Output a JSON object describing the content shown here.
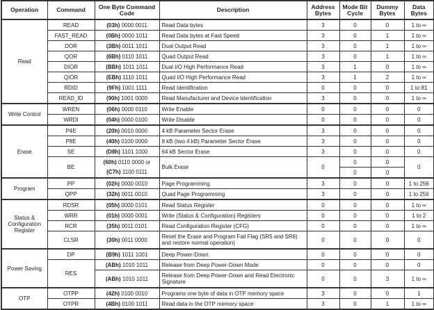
{
  "headers": [
    "Operation",
    "Command",
    "One Byte Command Code",
    "Description",
    "Address Bytes",
    "Mode Bit Cycle",
    "Dummy Bytes",
    "Data Bytes"
  ],
  "groups": [
    {
      "operation": "Read",
      "commands": [
        {
          "command": "READ",
          "entries": [
            {
              "codes": [
                {
                  "hex": "(03h)",
                  "bin": "0000 0011"
                }
              ],
              "description": "Read Data bytes",
              "address": "3",
              "mode": "0",
              "dummy": "0",
              "data": "1 to ∞"
            }
          ]
        },
        {
          "command": "FAST_READ",
          "entries": [
            {
              "codes": [
                {
                  "hex": "(0Bh)",
                  "bin": "0000 1011"
                }
              ],
              "description": "Read Data bytes at Fast Speed",
              "address": "3",
              "mode": "0",
              "dummy": "1",
              "data": "1 to ∞"
            }
          ]
        },
        {
          "command": "DOR",
          "entries": [
            {
              "codes": [
                {
                  "hex": "(3Bh)",
                  "bin": "0011 1011"
                }
              ],
              "description": "Dual Output Read",
              "address": "3",
              "mode": "0",
              "dummy": "1",
              "data": "1 to ∞"
            }
          ]
        },
        {
          "command": "QOR",
          "entries": [
            {
              "codes": [
                {
                  "hex": "(6Bh)",
                  "bin": "0110 1011"
                }
              ],
              "description": "Quad Output Read",
              "address": "3",
              "mode": "0",
              "dummy": "1",
              "data": "1 to ∞"
            }
          ]
        },
        {
          "command": "DIOR",
          "entries": [
            {
              "codes": [
                {
                  "hex": "(BBh)",
                  "bin": "1011 1011"
                }
              ],
              "description": "Dual I/O High Performance Read",
              "address": "3",
              "mode": "1",
              "dummy": "0",
              "data": "1 to ∞"
            }
          ]
        },
        {
          "command": "QIOR",
          "entries": [
            {
              "codes": [
                {
                  "hex": "(EBh)",
                  "bin": "1110 1011"
                }
              ],
              "description": "Quad I/O High Performance Read",
              "address": "3",
              "mode": "1",
              "dummy": "2",
              "data": "1 to ∞"
            }
          ]
        },
        {
          "command": "RDID",
          "entries": [
            {
              "codes": [
                {
                  "hex": "(9Fh)",
                  "bin": "1001 1111"
                }
              ],
              "description": "Read Identification",
              "address": "0",
              "mode": "0",
              "dummy": "0",
              "data": "1 to 81"
            }
          ]
        },
        {
          "command": "READ_ID",
          "entries": [
            {
              "codes": [
                {
                  "hex": "(90h)",
                  "bin": "1001 0000"
                }
              ],
              "description": "Read Manufacturer and Device Identification",
              "address": "3",
              "mode": "0",
              "dummy": "0",
              "data": "1 to ∞"
            }
          ]
        }
      ]
    },
    {
      "operation": "Write Control",
      "commands": [
        {
          "command": "WREN",
          "entries": [
            {
              "codes": [
                {
                  "hex": "(06h)",
                  "bin": "0000 0110"
                }
              ],
              "description": "Write Enable",
              "address": "0",
              "mode": "0",
              "dummy": "0",
              "data": "0"
            }
          ]
        },
        {
          "command": "WRDI",
          "entries": [
            {
              "codes": [
                {
                  "hex": "(04h)",
                  "bin": "0000 0100"
                }
              ],
              "description": "Write Disable",
              "address": "0",
              "mode": "0",
              "dummy": "0",
              "data": "0"
            }
          ]
        }
      ]
    },
    {
      "operation": "Erase",
      "commands": [
        {
          "command": "P4E",
          "entries": [
            {
              "codes": [
                {
                  "hex": "(20h)",
                  "bin": "0010 0000"
                }
              ],
              "description": "4 kB Parameter Sector Erase",
              "address": "3",
              "mode": "0",
              "dummy": "0",
              "data": "0"
            }
          ]
        },
        {
          "command": "P8E",
          "entries": [
            {
              "codes": [
                {
                  "hex": "(40h)",
                  "bin": "0100 0000"
                }
              ],
              "description": "8 kB (two 4 kB) Parameter Sector Erase",
              "address": "3",
              "mode": "0",
              "dummy": "0",
              "data": "0"
            }
          ]
        },
        {
          "command": "SE",
          "entries": [
            {
              "codes": [
                {
                  "hex": "(D8h)",
                  "bin": "1101 1000"
                }
              ],
              "description": "64 kB Sector Erase",
              "address": "3",
              "mode": "0",
              "dummy": "0",
              "data": "0"
            }
          ]
        },
        {
          "command": "BE",
          "entries": [
            {
              "codes": [
                {
                  "hex": "(60h)",
                  "bin": "0110 0000 or"
                },
                {
                  "hex": "(C7h)",
                  "bin": "1100 0111"
                }
              ],
              "description": "Bulk Erase",
              "address": "0",
              "mode": [
                "0",
                "0"
              ],
              "dummy": [
                "0",
                "0"
              ],
              "data": "0"
            }
          ]
        }
      ]
    },
    {
      "operation": "Program",
      "commands": [
        {
          "command": "PP",
          "entries": [
            {
              "codes": [
                {
                  "hex": "(02h)",
                  "bin": "0000 0010"
                }
              ],
              "description": "Page Programming",
              "address": "3",
              "mode": "0",
              "dummy": "0",
              "data": "1 to 256"
            }
          ]
        },
        {
          "command": "QPP",
          "entries": [
            {
              "codes": [
                {
                  "hex": "(32h)",
                  "bin": "0011 0010"
                }
              ],
              "description": "Quad Page Programming",
              "address": "3",
              "mode": "0",
              "dummy": "0",
              "data": "1 to 256"
            }
          ]
        }
      ]
    },
    {
      "operation": "Status & Configuration Register",
      "commands": [
        {
          "command": "RDSR",
          "entries": [
            {
              "codes": [
                {
                  "hex": "(05h)",
                  "bin": "0000 0101"
                }
              ],
              "description": "Read Status Register",
              "address": "0",
              "mode": "0",
              "dummy": "0",
              "data": "1 to ∞"
            }
          ]
        },
        {
          "command": "WRR",
          "entries": [
            {
              "codes": [
                {
                  "hex": "(01h)",
                  "bin": "0000 0001"
                }
              ],
              "description": "Write (Status & Configuration) Registers",
              "address": "0",
              "mode": "0",
              "dummy": "0",
              "data": "1 to 2"
            }
          ]
        },
        {
          "command": "RCR",
          "entries": [
            {
              "codes": [
                {
                  "hex": "(35h)",
                  "bin": "0011 0101"
                }
              ],
              "description": "Read Configuration Register (CFG)",
              "address": "0",
              "mode": "0",
              "dummy": "0",
              "data": "1 to ∞"
            }
          ]
        },
        {
          "command": "CLSR",
          "entries": [
            {
              "codes": [
                {
                  "hex": "(30h)",
                  "bin": "0011 0000"
                }
              ],
              "description": "Reset the Erase and Program Fail Flag (SR5 and SR6) and restore normal operation)",
              "address": "0",
              "mode": "0",
              "dummy": "0",
              "data": "0",
              "tall": true
            }
          ]
        }
      ]
    },
    {
      "operation": "Power Saving",
      "commands": [
        {
          "command": "DP",
          "entries": [
            {
              "codes": [
                {
                  "hex": "(B9h)",
                  "bin": "1011 1001"
                }
              ],
              "description": "Deep Power-Down",
              "address": "0",
              "mode": "0",
              "dummy": "0",
              "data": "0"
            }
          ]
        },
        {
          "command": "RES",
          "entries": [
            {
              "codes": [
                {
                  "hex": "(ABh)",
                  "bin": "1010 1011"
                }
              ],
              "description": "Release from Deep Power-Down Mode",
              "address": "0",
              "mode": "0",
              "dummy": "0",
              "data": "0"
            },
            {
              "codes": [
                {
                  "hex": "(ABh)",
                  "bin": "1010 1011"
                }
              ],
              "description": "Release from Deep Power-Down and Read Electronic Signature",
              "address": "0",
              "mode": "0",
              "dummy": "3",
              "data": "1 to ∞",
              "tall": true
            }
          ]
        }
      ]
    },
    {
      "operation": "OTP",
      "commands": [
        {
          "command": "OTPP",
          "entries": [
            {
              "codes": [
                {
                  "hex": "(42h)",
                  "bin": "0100 0010"
                }
              ],
              "description": "Programs one byte of data in OTP memory space",
              "address": "3",
              "mode": "0",
              "dummy": "0",
              "data": "1"
            }
          ]
        },
        {
          "command": "OTPR",
          "entries": [
            {
              "codes": [
                {
                  "hex": "(4Bh)",
                  "bin": "0100 1011"
                }
              ],
              "description": "Read data in the OTP memory space",
              "address": "3",
              "mode": "0",
              "dummy": "1",
              "data": "1 to ∞"
            }
          ]
        }
      ]
    }
  ]
}
